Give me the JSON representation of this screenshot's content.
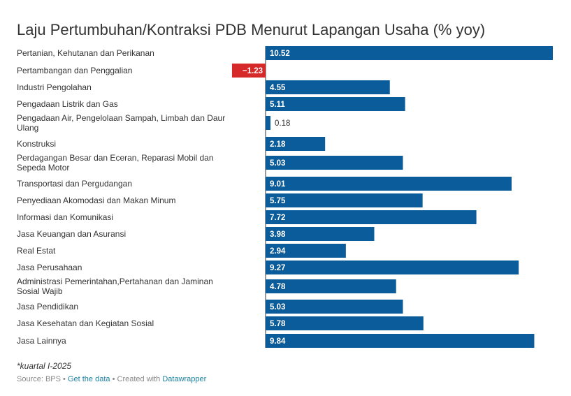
{
  "title": "Laju Pertumbuhan/Kontraksi PDB Menurut Lapangan Usaha (% yoy)",
  "note": "*kuartal I-2025",
  "footer": {
    "source": "Source: BPS",
    "separator": "•",
    "get_data": "Get the data",
    "created_with": "Created with",
    "tool": "Datawrapper"
  },
  "colors": {
    "positive": "#0a5c9a",
    "negative": "#d62a2a"
  },
  "chart_data": {
    "type": "bar",
    "orientation": "horizontal",
    "categories": [
      "Pertanian, Kehutanan dan Perikanan",
      "Pertambangan dan Penggalian",
      "Industri Pengolahan",
      "Pengadaan Listrik dan Gas",
      "Pengadaan Air, Pengelolaan Sampah, Limbah dan Daur Ulang",
      "Konstruksi",
      "Perdagangan Besar dan Eceran, Reparasi Mobil dan Sepeda Motor",
      "Transportasi dan Pergudangan",
      "Penyediaan Akomodasi dan Makan Minum",
      "Informasi dan Komunikasi",
      "Jasa Keuangan dan Asuransi",
      "Real Estat",
      "Jasa Perusahaan",
      "Administrasi Pemerintahan,Pertahanan dan Jaminan Sosial Wajib",
      "Jasa Pendidikan",
      "Jasa Kesehatan dan Kegiatan Sosial",
      "Jasa Lainnya"
    ],
    "values": [
      10.52,
      -1.23,
      4.55,
      5.11,
      0.18,
      2.18,
      5.03,
      9.01,
      5.75,
      7.72,
      3.98,
      2.94,
      9.27,
      4.78,
      5.03,
      5.78,
      9.84
    ],
    "value_labels": [
      "10.52",
      "−1.23",
      "4.55",
      "5.11",
      "0.18",
      "2.18",
      "5.03",
      "9.01",
      "5.75",
      "7.72",
      "3.98",
      "2.94",
      "9.27",
      "4.78",
      "5.03",
      "5.78",
      "9.84"
    ],
    "xlim": [
      -1.23,
      10.52
    ],
    "grid": false,
    "legend": "none"
  }
}
